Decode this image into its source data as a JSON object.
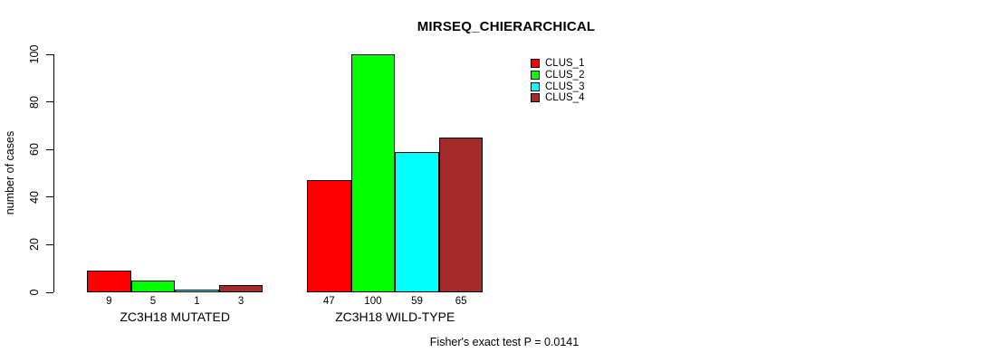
{
  "chart_data": {
    "type": "bar",
    "title": "MIRSEQ_CHIERARCHICAL",
    "ylabel": "number of cases",
    "ylim": [
      0,
      100
    ],
    "yticks": [
      0,
      20,
      40,
      60,
      80,
      100
    ],
    "grid": false,
    "legend_position": "top-right",
    "annotation": "Fisher's exact test P = 0.0141",
    "categories": [
      "ZC3H18 MUTATED",
      "ZC3H18 WILD-TYPE"
    ],
    "groups": [
      {
        "label": "ZC3H18 MUTATED",
        "values": [
          9,
          5,
          1,
          3
        ]
      },
      {
        "label": "ZC3H18 WILD-TYPE",
        "values": [
          47,
          100,
          59,
          65
        ]
      }
    ],
    "series": [
      {
        "name": "CLUS_1",
        "color": "#FF0000"
      },
      {
        "name": "CLUS_2",
        "color": "#00FF00"
      },
      {
        "name": "CLUS_3",
        "color": "#00FFFF"
      },
      {
        "name": "CLUS_4",
        "color": "#A52A2A"
      }
    ],
    "bar_border_color": "#000000",
    "axis_color": "#000000",
    "background_color": "#FFFFFF"
  }
}
